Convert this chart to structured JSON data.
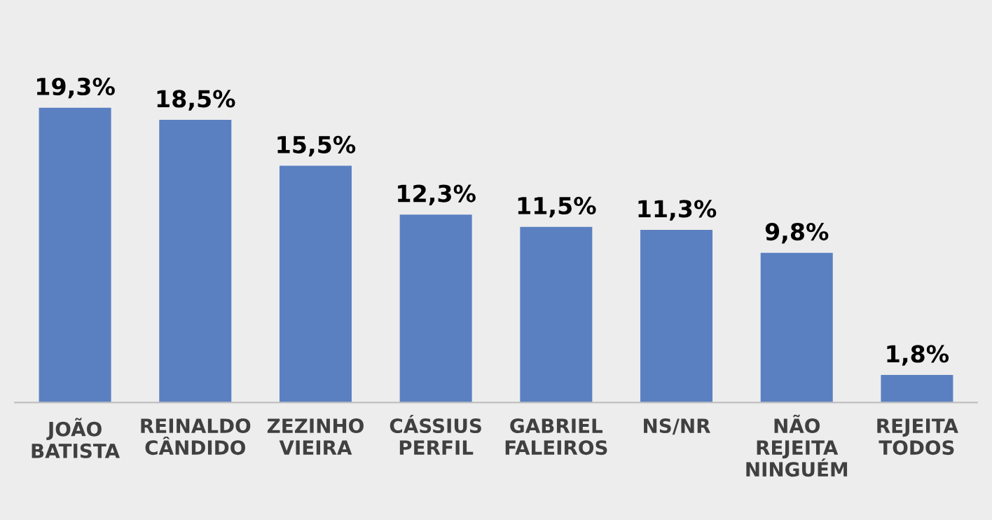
{
  "chart_data": {
    "type": "bar",
    "categories": [
      "JOÃO\nBATISTA",
      "REINALDO\nCÂNDIDO",
      "ZEZINHO\nVIEIRA",
      "CÁSSIUS\nPERFIL",
      "GABRIEL\nFALEIROS",
      "NS/NR",
      "NÃO\nREJEITA\nNINGUÉM",
      "REJEITA\nTODOS"
    ],
    "values": [
      19.3,
      18.5,
      15.5,
      12.3,
      11.5,
      11.3,
      9.8,
      1.8
    ],
    "value_labels": [
      "19,3%",
      "18,5%",
      "15,5%",
      "12,3%",
      "11,5%",
      "11,3%",
      "9,8%",
      "1,8%"
    ],
    "color": "#5b80c1"
  }
}
